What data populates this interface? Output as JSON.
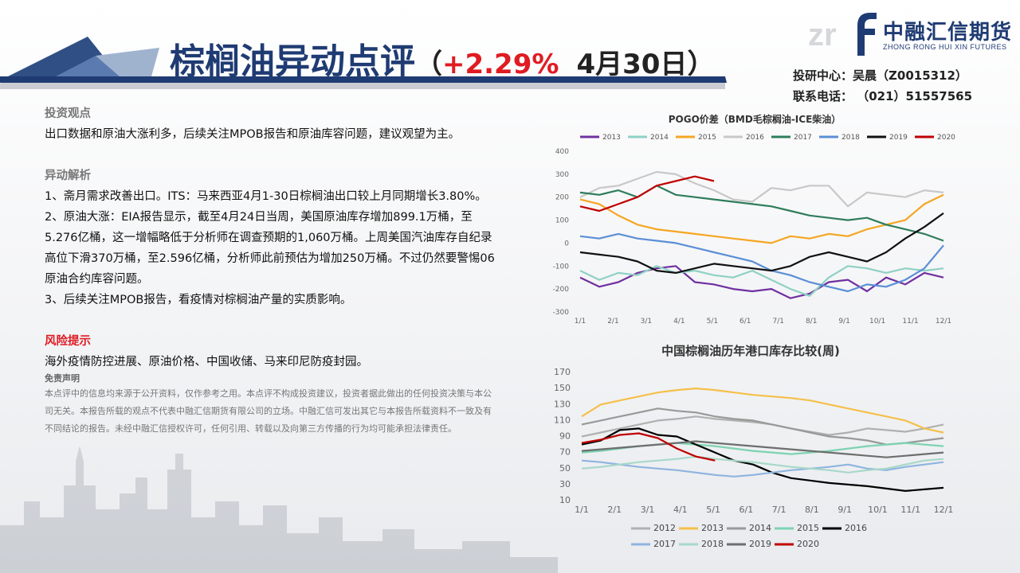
{
  "header": {
    "title_main": "棕榈油",
    "title_rest": "异动点评",
    "paren_open": "（",
    "change_pct": "+2.29%",
    "date": "4月30日",
    "paren_close": "）"
  },
  "logo": {
    "mark_letters": "zr",
    "name": "中融汇信期货",
    "sub": "ZHONG RONG HUI XIN FUTURES"
  },
  "contact": {
    "line1": "投研中心：吴晨（Z0015312）",
    "line2": "联系电话：  （021）51557565"
  },
  "view": {
    "heading": "投资观点",
    "text": "出口数据和原油大涨利多，后续关注MPOB报告和原油库容问题，建议观望为主。"
  },
  "analysis": {
    "heading": "异动解析",
    "items": [
      "1、斋月需求改善出口。ITS：马来西亚4月1-30日棕榈油出口较上月同期增长3.80%。",
      "2、原油大涨：EIA报告显示，截至4月24日当周，美国原油库存增加899.1万桶，至5.276亿桶，这一增幅略低于分析师在调查预期的1,060万桶。上周美国汽油库存自纪录高位下滑370万桶，至2.596亿桶，分析师此前预估为增加250万桶。不过仍然要警惕06原油合约库容问题。",
      "3、后续关注MPOB报告，看疫情对棕榈油产量的实质影响。"
    ]
  },
  "risk": {
    "heading": "风险提示",
    "text": "海外疫情防控进展、原油价格、中国收储、马来印尼防疫封园。"
  },
  "disclaimer": {
    "heading": "免责声明",
    "text": "本点评中的信息均来源于公开资料，仅作参考之用。本点评不构成投资建议，投资者据此做出的任何投资决策与本公司无关。本报告所载的观点不代表中融汇信期货有限公司的立场。中融汇信可发出其它与本报告所载资料不一致及有不同结论的报告。未经中融汇信授权许可，任何引用、转载以及向第三方传播的行为均可能承担法律责任。"
  },
  "chart_data": [
    {
      "type": "line",
      "title": "POGO价差（BMD毛棕榈油-ICE柴油）",
      "ylim": [
        -300,
        400
      ],
      "yticks": [
        "400",
        "300",
        "200",
        "100",
        "0",
        "-100",
        "-200",
        "-300"
      ],
      "xticks": [
        "1/1",
        "2/1",
        "3/1",
        "4/1",
        "5/1",
        "6/1",
        "7/1",
        "8/1",
        "9/1",
        "10/1",
        "11/1",
        "12/1"
      ],
      "legend_position": "top",
      "series": [
        {
          "name": "2013",
          "color": "#7030a0",
          "values": [
            -150,
            -190,
            -170,
            -130,
            -110,
            -100,
            -170,
            -180,
            -200,
            -210,
            -200,
            -240,
            -220,
            -170,
            -160,
            -210,
            -150,
            -180,
            -130,
            -150
          ]
        },
        {
          "name": "2014",
          "color": "#8fd1c4",
          "values": [
            -120,
            -160,
            -130,
            -140,
            -100,
            -130,
            -120,
            -140,
            -150,
            -120,
            -160,
            -200,
            -230,
            -150,
            -100,
            -110,
            -130,
            -110,
            -120,
            -110
          ]
        },
        {
          "name": "2015",
          "color": "#f5a623",
          "values": [
            190,
            170,
            120,
            80,
            60,
            50,
            40,
            30,
            20,
            10,
            0,
            30,
            20,
            40,
            30,
            60,
            80,
            100,
            170,
            210
          ]
        },
        {
          "name": "2016",
          "color": "#c8c8c8",
          "values": [
            200,
            240,
            250,
            280,
            310,
            300,
            260,
            230,
            190,
            180,
            240,
            230,
            250,
            250,
            160,
            220,
            210,
            200,
            230,
            220
          ]
        },
        {
          "name": "2017",
          "color": "#2e7d5b",
          "values": [
            220,
            210,
            230,
            200,
            250,
            210,
            200,
            190,
            180,
            170,
            160,
            140,
            120,
            110,
            100,
            110,
            80,
            60,
            40,
            10
          ]
        },
        {
          "name": "2018",
          "color": "#5b8fd6",
          "values": [
            30,
            20,
            40,
            20,
            10,
            0,
            -20,
            -40,
            -60,
            -80,
            -120,
            -140,
            -170,
            -190,
            -210,
            -180,
            -190,
            -160,
            -110,
            -10
          ]
        },
        {
          "name": "2019",
          "color": "#111111",
          "values": [
            -40,
            -50,
            -60,
            -80,
            -120,
            -130,
            -110,
            -90,
            -100,
            -110,
            -120,
            -100,
            -60,
            -40,
            -60,
            -80,
            -40,
            20,
            70,
            130
          ]
        },
        {
          "name": "2020",
          "color": "#c00000",
          "values": [
            160,
            140,
            170,
            200,
            250,
            270,
            290,
            270,
            null,
            null,
            null,
            null,
            null,
            null,
            null,
            null,
            null,
            null,
            null,
            null
          ]
        }
      ]
    },
    {
      "type": "line",
      "title": "中国棕榈油历年港口库存比较(周)",
      "ylim": [
        10,
        170
      ],
      "yticks": [
        "170",
        "150",
        "130",
        "110",
        "90",
        "70",
        "50",
        "30",
        "10"
      ],
      "xticks": [
        "1/1",
        "2/1",
        "3/1",
        "4/1",
        "5/1",
        "6/1",
        "7/1",
        "8/1",
        "9/1",
        "10/1",
        "11/1",
        "12/1"
      ],
      "legend_position": "bottom",
      "series": [
        {
          "name": "2012",
          "color": "#b0b0b0",
          "values": [
            90,
            95,
            100,
            105,
            110,
            112,
            115,
            112,
            110,
            108,
            105,
            100,
            96,
            92,
            95,
            100,
            98,
            96,
            100,
            105
          ]
        },
        {
          "name": "2013",
          "color": "#f5c04a",
          "values": [
            115,
            130,
            135,
            140,
            145,
            148,
            150,
            148,
            145,
            142,
            140,
            138,
            135,
            130,
            125,
            120,
            115,
            110,
            100,
            95
          ]
        },
        {
          "name": "2014",
          "color": "#999999",
          "values": [
            105,
            110,
            115,
            120,
            125,
            122,
            120,
            115,
            112,
            110,
            105,
            100,
            95,
            90,
            88,
            85,
            80,
            82,
            85,
            88
          ]
        },
        {
          "name": "2015",
          "color": "#7ed3b2",
          "values": [
            70,
            72,
            75,
            78,
            80,
            82,
            80,
            78,
            75,
            72,
            70,
            68,
            70,
            72,
            75,
            78,
            80,
            82,
            80,
            78
          ]
        },
        {
          "name": "2016",
          "color": "#000000",
          "values": [
            80,
            85,
            98,
            100,
            92,
            90,
            80,
            70,
            60,
            55,
            45,
            38,
            35,
            32,
            30,
            28,
            25,
            22,
            24,
            26
          ]
        },
        {
          "name": "2017",
          "color": "#8fb4e0",
          "values": [
            60,
            58,
            55,
            52,
            50,
            48,
            45,
            42,
            40,
            42,
            45,
            48,
            50,
            52,
            55,
            50,
            48,
            52,
            55,
            58
          ]
        },
        {
          "name": "2018",
          "color": "#a8d8c8",
          "values": [
            50,
            52,
            55,
            58,
            60,
            62,
            65,
            62,
            60,
            58,
            55,
            52,
            50,
            48,
            45,
            48,
            50,
            55,
            60,
            62
          ]
        },
        {
          "name": "2019",
          "color": "#6e6e6e",
          "values": [
            72,
            74,
            76,
            78,
            80,
            82,
            84,
            82,
            80,
            78,
            76,
            74,
            72,
            70,
            68,
            66,
            64,
            66,
            68,
            70
          ]
        },
        {
          "name": "2020",
          "color": "#c00000",
          "values": [
            82,
            86,
            92,
            94,
            88,
            75,
            65,
            60,
            null,
            null,
            null,
            null,
            null,
            null,
            null,
            null,
            null,
            null,
            null,
            null
          ]
        }
      ]
    }
  ]
}
